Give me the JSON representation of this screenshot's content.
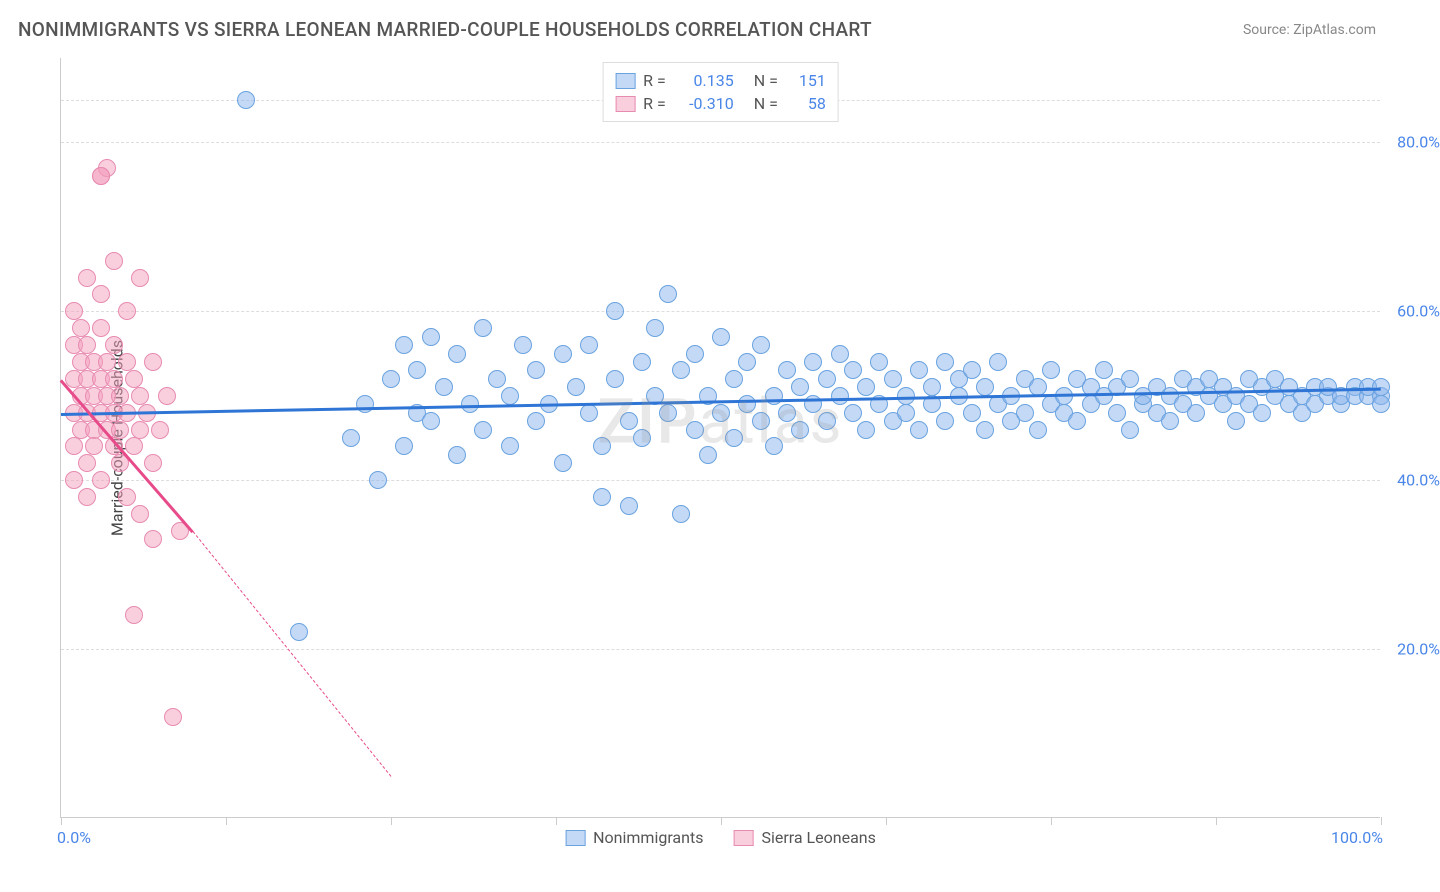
{
  "title": "NONIMMIGRANTS VS SIERRA LEONEAN MARRIED-COUPLE HOUSEHOLDS CORRELATION CHART",
  "source": "Source: ZipAtlas.com",
  "watermark_bold": "ZIP",
  "watermark_light": "atlas",
  "ylabel": "Married-couple Households",
  "chart": {
    "type": "scatter",
    "xlim": [
      0,
      100
    ],
    "ylim": [
      0,
      90
    ],
    "ytick_labels": [
      "20.0%",
      "40.0%",
      "60.0%",
      "80.0%"
    ],
    "ytick_values": [
      20,
      40,
      60,
      80
    ],
    "xtick_values": [
      0,
      12.5,
      25,
      37.5,
      50,
      62.5,
      75,
      87.5,
      100
    ],
    "xtick_labels_shown": {
      "0": "0.0%",
      "100": "100.0%"
    },
    "grid_color": "#dddddd",
    "border_color": "#cccccc",
    "background_color": "#ffffff",
    "series": [
      {
        "name": "Nonimmigrants",
        "fill": "rgba(137,180,235,0.5)",
        "stroke": "#6aa3e0",
        "trend_color": "#2e75d6",
        "marker_radius": 9,
        "R": "0.135",
        "N": "151",
        "trend": {
          "x1": 0,
          "y1": 48,
          "x2": 100,
          "y2": 51
        },
        "points": [
          [
            14,
            85
          ],
          [
            18,
            22
          ],
          [
            22,
            45
          ],
          [
            23,
            49
          ],
          [
            24,
            40
          ],
          [
            25,
            52
          ],
          [
            26,
            56
          ],
          [
            26,
            44
          ],
          [
            27,
            48
          ],
          [
            27,
            53
          ],
          [
            28,
            57
          ],
          [
            28,
            47
          ],
          [
            29,
            51
          ],
          [
            30,
            43
          ],
          [
            30,
            55
          ],
          [
            31,
            49
          ],
          [
            32,
            58
          ],
          [
            32,
            46
          ],
          [
            33,
            52
          ],
          [
            34,
            50
          ],
          [
            34,
            44
          ],
          [
            35,
            56
          ],
          [
            36,
            47
          ],
          [
            36,
            53
          ],
          [
            37,
            49
          ],
          [
            38,
            42
          ],
          [
            38,
            55
          ],
          [
            39,
            51
          ],
          [
            40,
            48
          ],
          [
            40,
            56
          ],
          [
            41,
            44
          ],
          [
            41,
            38
          ],
          [
            42,
            52
          ],
          [
            42,
            60
          ],
          [
            43,
            47
          ],
          [
            43,
            37
          ],
          [
            44,
            54
          ],
          [
            44,
            45
          ],
          [
            45,
            50
          ],
          [
            45,
            58
          ],
          [
            46,
            62
          ],
          [
            46,
            48
          ],
          [
            47,
            36
          ],
          [
            47,
            53
          ],
          [
            48,
            46
          ],
          [
            48,
            55
          ],
          [
            49,
            50
          ],
          [
            49,
            43
          ],
          [
            50,
            57
          ],
          [
            50,
            48
          ],
          [
            51,
            52
          ],
          [
            51,
            45
          ],
          [
            52,
            54
          ],
          [
            52,
            49
          ],
          [
            53,
            47
          ],
          [
            53,
            56
          ],
          [
            54,
            50
          ],
          [
            54,
            44
          ],
          [
            55,
            53
          ],
          [
            55,
            48
          ],
          [
            56,
            51
          ],
          [
            56,
            46
          ],
          [
            57,
            54
          ],
          [
            57,
            49
          ],
          [
            58,
            47
          ],
          [
            58,
            52
          ],
          [
            59,
            50
          ],
          [
            59,
            55
          ],
          [
            60,
            48
          ],
          [
            60,
            53
          ],
          [
            61,
            46
          ],
          [
            61,
            51
          ],
          [
            62,
            49
          ],
          [
            62,
            54
          ],
          [
            63,
            47
          ],
          [
            63,
            52
          ],
          [
            64,
            50
          ],
          [
            64,
            48
          ],
          [
            65,
            53
          ],
          [
            65,
            46
          ],
          [
            66,
            51
          ],
          [
            66,
            49
          ],
          [
            67,
            54
          ],
          [
            67,
            47
          ],
          [
            68,
            50
          ],
          [
            68,
            52
          ],
          [
            69,
            48
          ],
          [
            69,
            53
          ],
          [
            70,
            46
          ],
          [
            70,
            51
          ],
          [
            71,
            49
          ],
          [
            71,
            54
          ],
          [
            72,
            47
          ],
          [
            72,
            50
          ],
          [
            73,
            52
          ],
          [
            73,
            48
          ],
          [
            74,
            51
          ],
          [
            74,
            46
          ],
          [
            75,
            53
          ],
          [
            75,
            49
          ],
          [
            76,
            50
          ],
          [
            76,
            48
          ],
          [
            77,
            52
          ],
          [
            77,
            47
          ],
          [
            78,
            51
          ],
          [
            78,
            49
          ],
          [
            79,
            50
          ],
          [
            79,
            53
          ],
          [
            80,
            48
          ],
          [
            80,
            51
          ],
          [
            81,
            46
          ],
          [
            81,
            52
          ],
          [
            82,
            49
          ],
          [
            82,
            50
          ],
          [
            83,
            48
          ],
          [
            83,
            51
          ],
          [
            84,
            47
          ],
          [
            84,
            50
          ],
          [
            85,
            52
          ],
          [
            85,
            49
          ],
          [
            86,
            51
          ],
          [
            86,
            48
          ],
          [
            87,
            50
          ],
          [
            87,
            52
          ],
          [
            88,
            49
          ],
          [
            88,
            51
          ],
          [
            89,
            47
          ],
          [
            89,
            50
          ],
          [
            90,
            52
          ],
          [
            90,
            49
          ],
          [
            91,
            51
          ],
          [
            91,
            48
          ],
          [
            92,
            50
          ],
          [
            92,
            52
          ],
          [
            93,
            49
          ],
          [
            93,
            51
          ],
          [
            94,
            48
          ],
          [
            94,
            50
          ],
          [
            95,
            51
          ],
          [
            95,
            49
          ],
          [
            96,
            50
          ],
          [
            96,
            51
          ],
          [
            97,
            49
          ],
          [
            97,
            50
          ],
          [
            98,
            51
          ],
          [
            98,
            50
          ],
          [
            99,
            50
          ],
          [
            99,
            51
          ],
          [
            100,
            50
          ],
          [
            100,
            51
          ],
          [
            100,
            49
          ]
        ]
      },
      {
        "name": "Sierra Leoneans",
        "fill": "rgba(244,160,190,0.5)",
        "stroke": "#e88bb0",
        "trend_color": "#e74b8a",
        "marker_radius": 9,
        "R": "-0.310",
        "N": "58",
        "trend": {
          "x1": 0,
          "y1": 52,
          "x2": 10,
          "y2": 34
        },
        "trend_dash": {
          "x1": 10,
          "y1": 34,
          "x2": 25,
          "y2": 5
        },
        "points": [
          [
            1,
            48
          ],
          [
            1,
            52
          ],
          [
            1,
            56
          ],
          [
            1,
            44
          ],
          [
            1,
            60
          ],
          [
            1,
            40
          ],
          [
            1.5,
            50
          ],
          [
            1.5,
            46
          ],
          [
            1.5,
            54
          ],
          [
            1.5,
            58
          ],
          [
            2,
            42
          ],
          [
            2,
            48
          ],
          [
            2,
            52
          ],
          [
            2,
            56
          ],
          [
            2,
            64
          ],
          [
            2,
            38
          ],
          [
            2.5,
            50
          ],
          [
            2.5,
            46
          ],
          [
            2.5,
            54
          ],
          [
            2.5,
            44
          ],
          [
            3,
            48
          ],
          [
            3,
            52
          ],
          [
            3,
            58
          ],
          [
            3,
            40
          ],
          [
            3,
            62
          ],
          [
            3,
            76
          ],
          [
            3.5,
            46
          ],
          [
            3.5,
            50
          ],
          [
            3.5,
            54
          ],
          [
            3.5,
            77
          ],
          [
            4,
            44
          ],
          [
            4,
            48
          ],
          [
            4,
            52
          ],
          [
            4,
            56
          ],
          [
            4,
            66
          ],
          [
            4.5,
            42
          ],
          [
            4.5,
            50
          ],
          [
            4.5,
            46
          ],
          [
            5,
            48
          ],
          [
            5,
            54
          ],
          [
            5,
            38
          ],
          [
            5,
            60
          ],
          [
            5.5,
            44
          ],
          [
            5.5,
            52
          ],
          [
            5.5,
            24
          ],
          [
            6,
            46
          ],
          [
            6,
            50
          ],
          [
            6,
            36
          ],
          [
            6,
            64
          ],
          [
            6.5,
            48
          ],
          [
            7,
            42
          ],
          [
            7,
            54
          ],
          [
            7,
            33
          ],
          [
            7.5,
            46
          ],
          [
            8,
            50
          ],
          [
            8.5,
            12
          ],
          [
            9,
            34
          ],
          [
            3,
            76
          ]
        ]
      }
    ]
  },
  "legend_top": {
    "r_label": "R =",
    "n_label": "N =",
    "value_color": "#4a86e8",
    "label_color": "#555555"
  },
  "legend_bottom": {
    "items": [
      "Nonimmigrants",
      "Sierra Leoneans"
    ]
  }
}
